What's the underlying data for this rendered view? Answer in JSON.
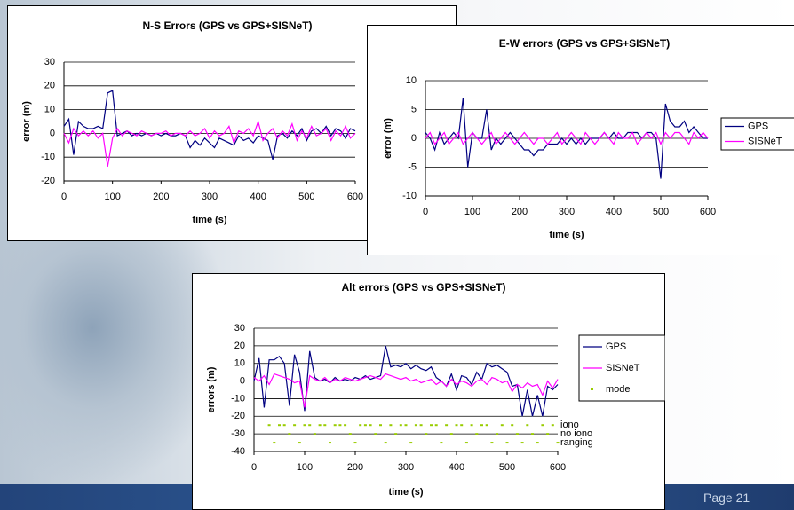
{
  "chart_data": [
    {
      "type": "line",
      "title": "N-S Errors (GPS vs GPS+SISNeT)",
      "xlabel": "time (s)",
      "ylabel": "error (m)",
      "x": [
        0,
        10,
        20,
        30,
        40,
        50,
        60,
        70,
        80,
        90,
        100,
        110,
        120,
        130,
        140,
        150,
        160,
        170,
        180,
        190,
        200,
        210,
        220,
        230,
        240,
        250,
        260,
        270,
        280,
        290,
        300,
        310,
        320,
        330,
        340,
        350,
        360,
        370,
        380,
        390,
        400,
        410,
        420,
        430,
        440,
        450,
        460,
        470,
        480,
        490,
        500,
        510,
        520,
        530,
        540,
        550,
        560,
        570,
        580,
        590,
        600
      ],
      "series": [
        {
          "color": "#000080",
          "style": "line",
          "values": [
            3,
            6,
            -9,
            5,
            3,
            2,
            2,
            3,
            2,
            17,
            18,
            -1,
            0,
            1,
            -1,
            0,
            -1,
            0,
            -1,
            0,
            -1,
            0,
            -1,
            -1,
            0,
            -1,
            -6,
            -3,
            -5,
            -2,
            -4,
            -6,
            -2,
            -3,
            -4,
            -5,
            -1,
            -3,
            -2,
            -4,
            -1,
            -2,
            -3,
            -11,
            -1,
            0,
            -2,
            1,
            -1,
            2,
            -3,
            1,
            2,
            0,
            3,
            -1,
            2,
            1,
            -2,
            2,
            1
          ]
        },
        {
          "color": "#ff00ff",
          "style": "line",
          "values": [
            0,
            -4,
            2,
            -1,
            1,
            -1,
            1,
            -2,
            0,
            -14,
            -2,
            2,
            -1,
            1,
            0,
            -1,
            1,
            0,
            -1,
            0,
            0,
            1,
            -1,
            0,
            0,
            -1,
            1,
            -1,
            0,
            2,
            -2,
            1,
            -1,
            0,
            3,
            -4,
            1,
            0,
            2,
            -1,
            5,
            -3,
            0,
            2,
            -2,
            1,
            -1,
            4,
            -3,
            1,
            -2,
            3,
            -1,
            0,
            2,
            -3,
            1,
            -1,
            3,
            -2,
            0
          ]
        }
      ],
      "xlim": [
        0,
        600
      ],
      "xticks": [
        0,
        100,
        200,
        300,
        400,
        500,
        600
      ],
      "ylim": [
        -20,
        30
      ],
      "yticks": [
        -20,
        -10,
        0,
        10,
        20,
        30
      ],
      "grid": true
    },
    {
      "type": "line",
      "title": "E-W errors (GPS vs GPS+SISNeT)",
      "xlabel": "time (s)",
      "ylabel": "error (m)",
      "x": [
        0,
        10,
        20,
        30,
        40,
        50,
        60,
        70,
        80,
        90,
        100,
        110,
        120,
        130,
        140,
        150,
        160,
        170,
        180,
        190,
        200,
        210,
        220,
        230,
        240,
        250,
        260,
        270,
        280,
        290,
        300,
        310,
        320,
        330,
        340,
        350,
        360,
        370,
        380,
        390,
        400,
        410,
        420,
        430,
        440,
        450,
        460,
        470,
        480,
        490,
        500,
        510,
        520,
        530,
        540,
        550,
        560,
        570,
        580,
        590,
        600
      ],
      "series": [
        {
          "name": "GPS",
          "color": "#000080",
          "style": "line",
          "values": [
            1,
            0,
            -2,
            1,
            -1,
            0,
            1,
            0,
            7,
            -5,
            1,
            0,
            0,
            5,
            -2,
            0,
            -1,
            0,
            1,
            0,
            -1,
            -2,
            -2,
            -3,
            -2,
            -2,
            -1,
            -1,
            -1,
            0,
            -1,
            0,
            -1,
            0,
            -1,
            0,
            0,
            0,
            1,
            0,
            1,
            0,
            0,
            1,
            1,
            1,
            0,
            1,
            1,
            0,
            -7,
            6,
            3,
            2,
            2,
            3,
            1,
            2,
            1,
            0,
            0
          ]
        },
        {
          "name": "SISNeT",
          "color": "#ff00ff",
          "style": "line",
          "values": [
            0,
            1,
            -1,
            0,
            1,
            -1,
            0,
            1,
            -1,
            0,
            1,
            0,
            -1,
            0,
            1,
            -1,
            0,
            1,
            0,
            -1,
            0,
            1,
            0,
            -1,
            0,
            0,
            -1,
            0,
            1,
            -1,
            0,
            1,
            0,
            -1,
            1,
            0,
            -1,
            0,
            1,
            0,
            -1,
            1,
            0,
            0,
            1,
            -1,
            0,
            1,
            0,
            1,
            -1,
            1,
            0,
            1,
            1,
            0,
            -1,
            1,
            0,
            1,
            0
          ]
        }
      ],
      "xlim": [
        0,
        600
      ],
      "xticks": [
        0,
        100,
        200,
        300,
        400,
        500,
        600
      ],
      "ylim": [
        -10,
        10
      ],
      "yticks": [
        -10,
        -5,
        0,
        5,
        10
      ],
      "grid": true,
      "legend": "right"
    },
    {
      "type": "line",
      "title": "Alt errors (GPS vs GPS+SISNeT)",
      "xlabel": "time (s)",
      "ylabel": "errors (m)",
      "x": [
        0,
        10,
        20,
        30,
        40,
        50,
        60,
        70,
        80,
        90,
        100,
        110,
        120,
        130,
        140,
        150,
        160,
        170,
        180,
        190,
        200,
        210,
        220,
        230,
        240,
        250,
        260,
        270,
        280,
        290,
        300,
        310,
        320,
        330,
        340,
        350,
        360,
        370,
        380,
        390,
        400,
        410,
        420,
        430,
        440,
        450,
        460,
        470,
        480,
        490,
        500,
        510,
        520,
        530,
        540,
        550,
        560,
        570,
        580,
        590,
        600
      ],
      "series": [
        {
          "name": "GPS",
          "color": "#000080",
          "style": "line",
          "values": [
            0,
            13,
            -15,
            12,
            12,
            14,
            10,
            -14,
            15,
            5,
            -17,
            17,
            2,
            0,
            1,
            -1,
            2,
            0,
            1,
            0,
            2,
            1,
            3,
            1,
            2,
            3,
            20,
            8,
            9,
            8,
            10,
            7,
            9,
            7,
            6,
            8,
            2,
            0,
            -3,
            4,
            -5,
            3,
            2,
            -2,
            5,
            1,
            10,
            8,
            9,
            7,
            5,
            -3,
            -2,
            -20,
            -5,
            -20,
            -8,
            -20,
            -3,
            -5,
            -2
          ]
        },
        {
          "name": "SISNeT",
          "color": "#ff00ff",
          "style": "line",
          "values": [
            2,
            0,
            3,
            -2,
            4,
            3,
            2,
            1,
            -1,
            0,
            -15,
            3,
            1,
            0,
            2,
            -1,
            1,
            0,
            2,
            1,
            0,
            1,
            2,
            3,
            2,
            1,
            4,
            3,
            2,
            1,
            2,
            0,
            1,
            -1,
            0,
            1,
            -2,
            0,
            -3,
            1,
            -2,
            0,
            -1,
            -3,
            0,
            1,
            -2,
            2,
            1,
            -1,
            0,
            -6,
            -2,
            -4,
            -1,
            -3,
            -2,
            -8,
            0,
            -4,
            1
          ]
        },
        {
          "name": "mode",
          "color": "#99cc00",
          "style": "markers",
          "values": [
            null,
            null,
            null,
            -25,
            -35,
            -25,
            -25,
            -30,
            -25,
            -35,
            -25,
            -25,
            -30,
            -25,
            -25,
            -35,
            -25,
            -25,
            -25,
            -30,
            -35,
            -25,
            -25,
            -25,
            -30,
            -25,
            -35,
            -25,
            -30,
            -25,
            -25,
            -35,
            -25,
            -25,
            -30,
            -25,
            -25,
            -35,
            -25,
            -30,
            -25,
            -25,
            -35,
            -25,
            -30,
            -25,
            -25,
            -35,
            -30,
            -25,
            -35,
            -25,
            -30,
            -35,
            -25,
            -30,
            -35,
            -25,
            -30,
            -25,
            -35
          ]
        }
      ],
      "mode_labels": [
        {
          "value": -25,
          "label": "iono"
        },
        {
          "value": -30,
          "label": "no iono"
        },
        {
          "value": -35,
          "label": "ranging"
        }
      ],
      "xlim": [
        0,
        600
      ],
      "xticks": [
        0,
        100,
        200,
        300,
        400,
        500,
        600
      ],
      "ylim": [
        -40,
        30
      ],
      "yticks": [
        -40,
        -30,
        -20,
        -10,
        0,
        10,
        20,
        30
      ],
      "grid": true,
      "legend": "right"
    }
  ],
  "page_label": "Page 21"
}
